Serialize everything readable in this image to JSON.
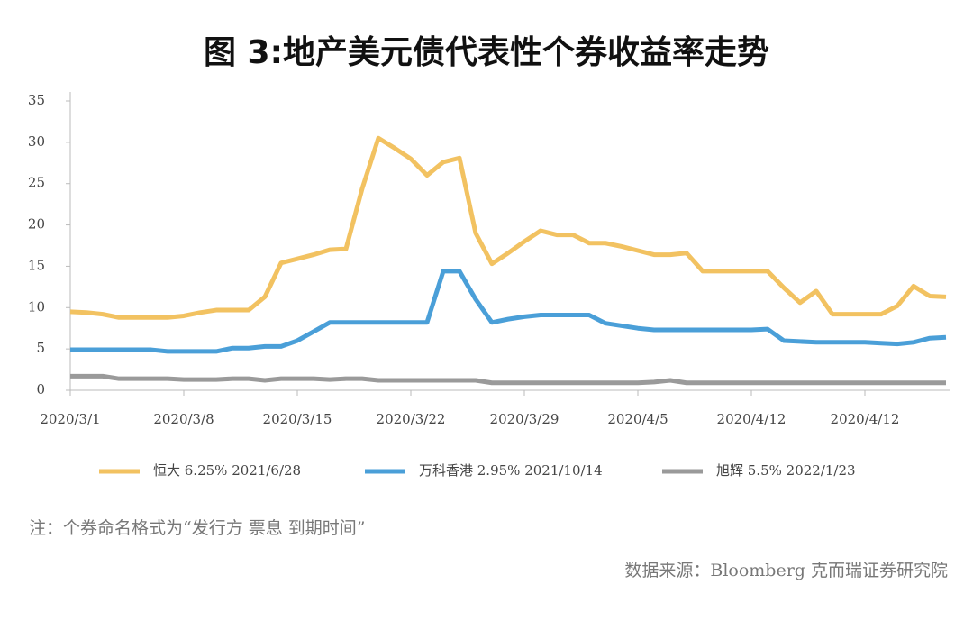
{
  "chart_data": {
    "type": "line",
    "title": "图 3:地产美元债代表性个券收益率走势",
    "categories": [
      "2020/3/1",
      null,
      null,
      null,
      null,
      null,
      null,
      "2020/3/8",
      null,
      null,
      null,
      null,
      null,
      null,
      "2020/3/15",
      null,
      null,
      null,
      null,
      null,
      null,
      "2020/3/22",
      null,
      null,
      null,
      null,
      null,
      null,
      "2020/3/29",
      null,
      null,
      null,
      null,
      null,
      null,
      "2020/4/5",
      null,
      null,
      null,
      null,
      null,
      null,
      "2020/4/12",
      null,
      null,
      null,
      null,
      null,
      null,
      "2020/4/12",
      null,
      null,
      null,
      null,
      null
    ],
    "series": [
      {
        "name": "恒大 6.25% 2021/6/28",
        "color": "#f2c261",
        "values": [
          9.5,
          9.4,
          9.2,
          8.8,
          8.8,
          8.8,
          8.8,
          9.0,
          9.4,
          9.7,
          9.7,
          9.7,
          11.3,
          15.4,
          15.9,
          16.4,
          17.0,
          17.1,
          24.4,
          30.5,
          29.3,
          28.0,
          26.0,
          27.6,
          28.1,
          19.0,
          15.3,
          16.6,
          18.0,
          19.3,
          18.8,
          18.8,
          17.8,
          17.8,
          17.4,
          16.9,
          16.4,
          16.4,
          16.6,
          14.4,
          14.4,
          14.4,
          14.4,
          14.4,
          12.4,
          10.6,
          12.0,
          9.2,
          9.2,
          9.2,
          9.2,
          10.2,
          12.6,
          11.4,
          11.3
        ]
      },
      {
        "name": "万科香港 2.95% 2021/10/14",
        "color": "#4a9fd8",
        "values": [
          4.9,
          4.9,
          4.9,
          4.9,
          4.9,
          4.9,
          4.7,
          4.7,
          4.7,
          4.7,
          5.1,
          5.1,
          5.3,
          5.3,
          6.0,
          7.1,
          8.2,
          8.2,
          8.2,
          8.2,
          8.2,
          8.2,
          8.2,
          14.4,
          14.4,
          11.0,
          8.2,
          8.6,
          8.9,
          9.1,
          9.1,
          9.1,
          9.1,
          8.1,
          7.8,
          7.5,
          7.3,
          7.3,
          7.3,
          7.3,
          7.3,
          7.3,
          7.3,
          7.4,
          6.0,
          5.9,
          5.8,
          5.8,
          5.8,
          5.8,
          5.7,
          5.6,
          5.8,
          6.3,
          6.4
        ]
      },
      {
        "name": "旭辉 5.5% 2022/1/23",
        "color": "#9a9a9a",
        "values": [
          1.7,
          1.7,
          1.7,
          1.4,
          1.4,
          1.4,
          1.4,
          1.3,
          1.3,
          1.3,
          1.4,
          1.4,
          1.2,
          1.4,
          1.4,
          1.4,
          1.3,
          1.4,
          1.4,
          1.2,
          1.2,
          1.2,
          1.2,
          1.2,
          1.2,
          1.2,
          0.9,
          0.9,
          0.9,
          0.9,
          0.9,
          0.9,
          0.9,
          0.9,
          0.9,
          0.9,
          1.0,
          1.2,
          0.9,
          0.9,
          0.9,
          0.9,
          0.9,
          0.9,
          0.9,
          0.9,
          0.9,
          0.9,
          0.9,
          0.9,
          0.9,
          0.9,
          0.9,
          0.9,
          0.9
        ]
      }
    ],
    "ylim": [
      0,
      35
    ],
    "yticks": [
      0,
      5,
      10,
      15,
      20,
      25,
      30,
      35
    ],
    "grid": false,
    "note": "注：个券命名格式为“发行方 票息 到期时间”",
    "source": "数据来源：Bloomberg 克而瑞证券研究院"
  }
}
